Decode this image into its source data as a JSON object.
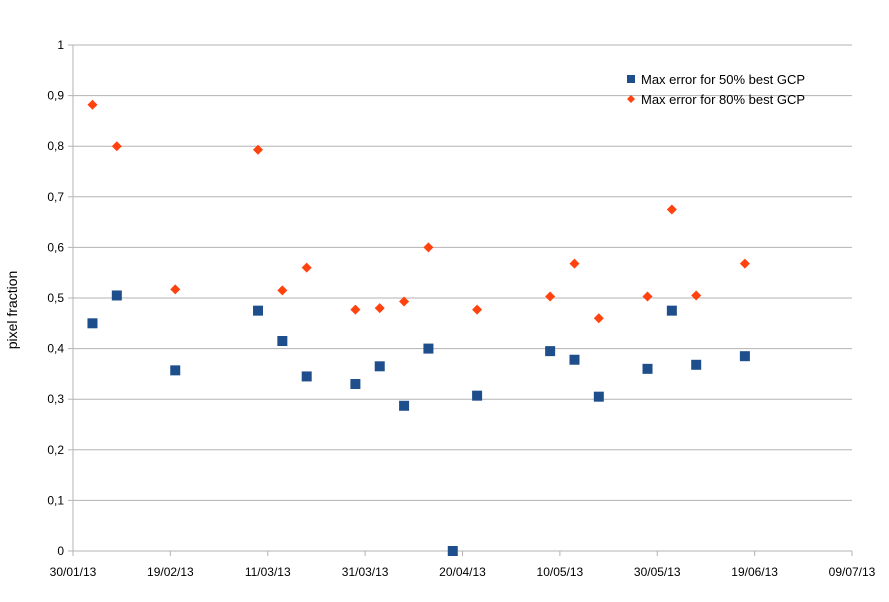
{
  "chart_data": {
    "type": "scatter",
    "ylabel": "pixel fraction",
    "xlabel": "",
    "title": "",
    "ylim": [
      0,
      1
    ],
    "xlim": [
      "2013-01-30",
      "2013-07-09"
    ],
    "y_tick_labels": [
      "0",
      "0,1",
      "0,2",
      "0,3",
      "0,4",
      "0,5",
      "0,6",
      "0,7",
      "0,8",
      "0,9",
      "1"
    ],
    "x_ticks": [
      {
        "date": "2013-01-30",
        "label": "30/01/13"
      },
      {
        "date": "2013-02-19",
        "label": "19/02/13"
      },
      {
        "date": "2013-03-11",
        "label": "11/03/13"
      },
      {
        "date": "2013-03-31",
        "label": "31/03/13"
      },
      {
        "date": "2013-04-20",
        "label": "20/04/13"
      },
      {
        "date": "2013-05-10",
        "label": "10/05/13"
      },
      {
        "date": "2013-05-30",
        "label": "30/05/13"
      },
      {
        "date": "2013-06-19",
        "label": "19/06/13"
      },
      {
        "date": "2013-07-09",
        "label": "09/07/13"
      }
    ],
    "grid": "horizontal",
    "legend_position": "top-right",
    "series": [
      {
        "name": "Max error for 50% best GCP",
        "marker": "square",
        "color": "#1f4e8c",
        "points": [
          {
            "x": "2013-02-03",
            "y": 0.45
          },
          {
            "x": "2013-02-08",
            "y": 0.505
          },
          {
            "x": "2013-02-20",
            "y": 0.357
          },
          {
            "x": "2013-03-09",
            "y": 0.475
          },
          {
            "x": "2013-03-14",
            "y": 0.415
          },
          {
            "x": "2013-03-19",
            "y": 0.345
          },
          {
            "x": "2013-03-29",
            "y": 0.33
          },
          {
            "x": "2013-04-03",
            "y": 0.365
          },
          {
            "x": "2013-04-08",
            "y": 0.287
          },
          {
            "x": "2013-04-13",
            "y": 0.4
          },
          {
            "x": "2013-04-18",
            "y": 0.0
          },
          {
            "x": "2013-04-23",
            "y": 0.307
          },
          {
            "x": "2013-05-08",
            "y": 0.395
          },
          {
            "x": "2013-05-13",
            "y": 0.378
          },
          {
            "x": "2013-05-18",
            "y": 0.305
          },
          {
            "x": "2013-05-28",
            "y": 0.36
          },
          {
            "x": "2013-06-02",
            "y": 0.475
          },
          {
            "x": "2013-06-07",
            "y": 0.368
          },
          {
            "x": "2013-06-17",
            "y": 0.385
          }
        ]
      },
      {
        "name": "Max error for 80% best GCP",
        "marker": "diamond",
        "color": "#ff420e",
        "points": [
          {
            "x": "2013-02-03",
            "y": 0.882
          },
          {
            "x": "2013-02-08",
            "y": 0.8
          },
          {
            "x": "2013-02-20",
            "y": 0.517
          },
          {
            "x": "2013-03-09",
            "y": 0.793
          },
          {
            "x": "2013-03-14",
            "y": 0.515
          },
          {
            "x": "2013-03-19",
            "y": 0.56
          },
          {
            "x": "2013-03-29",
            "y": 0.477
          },
          {
            "x": "2013-04-03",
            "y": 0.48
          },
          {
            "x": "2013-04-08",
            "y": 0.493
          },
          {
            "x": "2013-04-13",
            "y": 0.6
          },
          {
            "x": "2013-04-23",
            "y": 0.477
          },
          {
            "x": "2013-05-08",
            "y": 0.503
          },
          {
            "x": "2013-05-13",
            "y": 0.568
          },
          {
            "x": "2013-05-18",
            "y": 0.46
          },
          {
            "x": "2013-05-28",
            "y": 0.503
          },
          {
            "x": "2013-06-02",
            "y": 0.675
          },
          {
            "x": "2013-06-07",
            "y": 0.505
          },
          {
            "x": "2013-06-17",
            "y": 0.568
          }
        ]
      }
    ]
  }
}
